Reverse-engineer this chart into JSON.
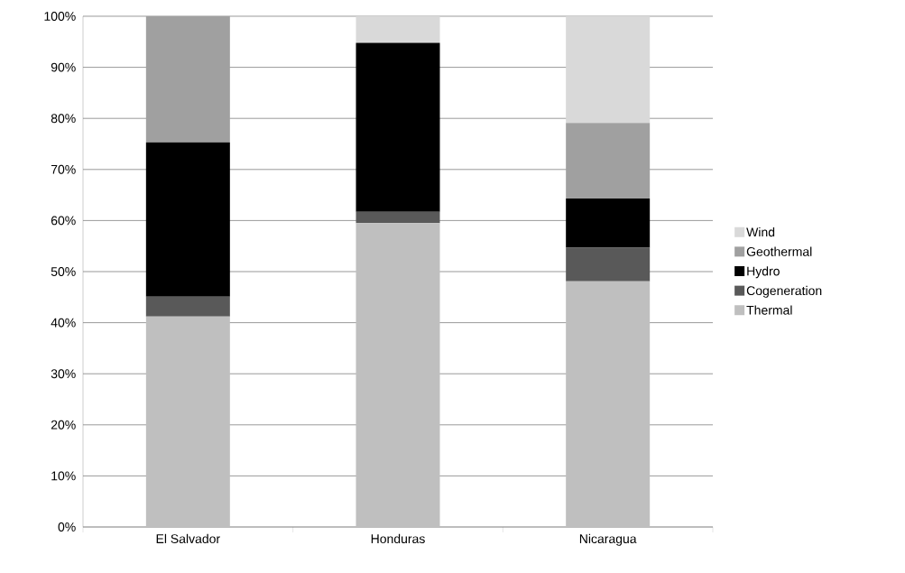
{
  "chart_data": {
    "type": "bar",
    "stacked": true,
    "categories": [
      "El Salvador",
      "Honduras",
      "Nicaragua"
    ],
    "series": [
      {
        "name": "Thermal",
        "color": "#bfbfbf",
        "values": [
          41.2,
          59.5,
          48.1
        ]
      },
      {
        "name": "Cogeneration",
        "color": "#595959",
        "values": [
          3.9,
          2.2,
          6.6
        ]
      },
      {
        "name": "Hydro",
        "color": "#000000",
        "values": [
          30.2,
          33.1,
          9.6
        ]
      },
      {
        "name": "Geothermal",
        "color": "#a0a0a0",
        "values": [
          24.7,
          0,
          14.8
        ]
      },
      {
        "name": "Wind",
        "color": "#d9d9d9",
        "values": [
          0,
          5.2,
          20.9
        ]
      }
    ],
    "ylim": [
      0,
      100
    ],
    "yticks": [
      {
        "value": 0,
        "label": "0%"
      },
      {
        "value": 10,
        "label": "10%"
      },
      {
        "value": 20,
        "label": "20%"
      },
      {
        "value": 30,
        "label": "30%"
      },
      {
        "value": 40,
        "label": "40%"
      },
      {
        "value": 50,
        "label": "50%"
      },
      {
        "value": 60,
        "label": "60%"
      },
      {
        "value": 70,
        "label": "70%"
      },
      {
        "value": 80,
        "label": "80%"
      },
      {
        "value": 90,
        "label": "90%"
      },
      {
        "value": 100,
        "label": "100%"
      }
    ],
    "grid": "y",
    "legend": "right"
  }
}
